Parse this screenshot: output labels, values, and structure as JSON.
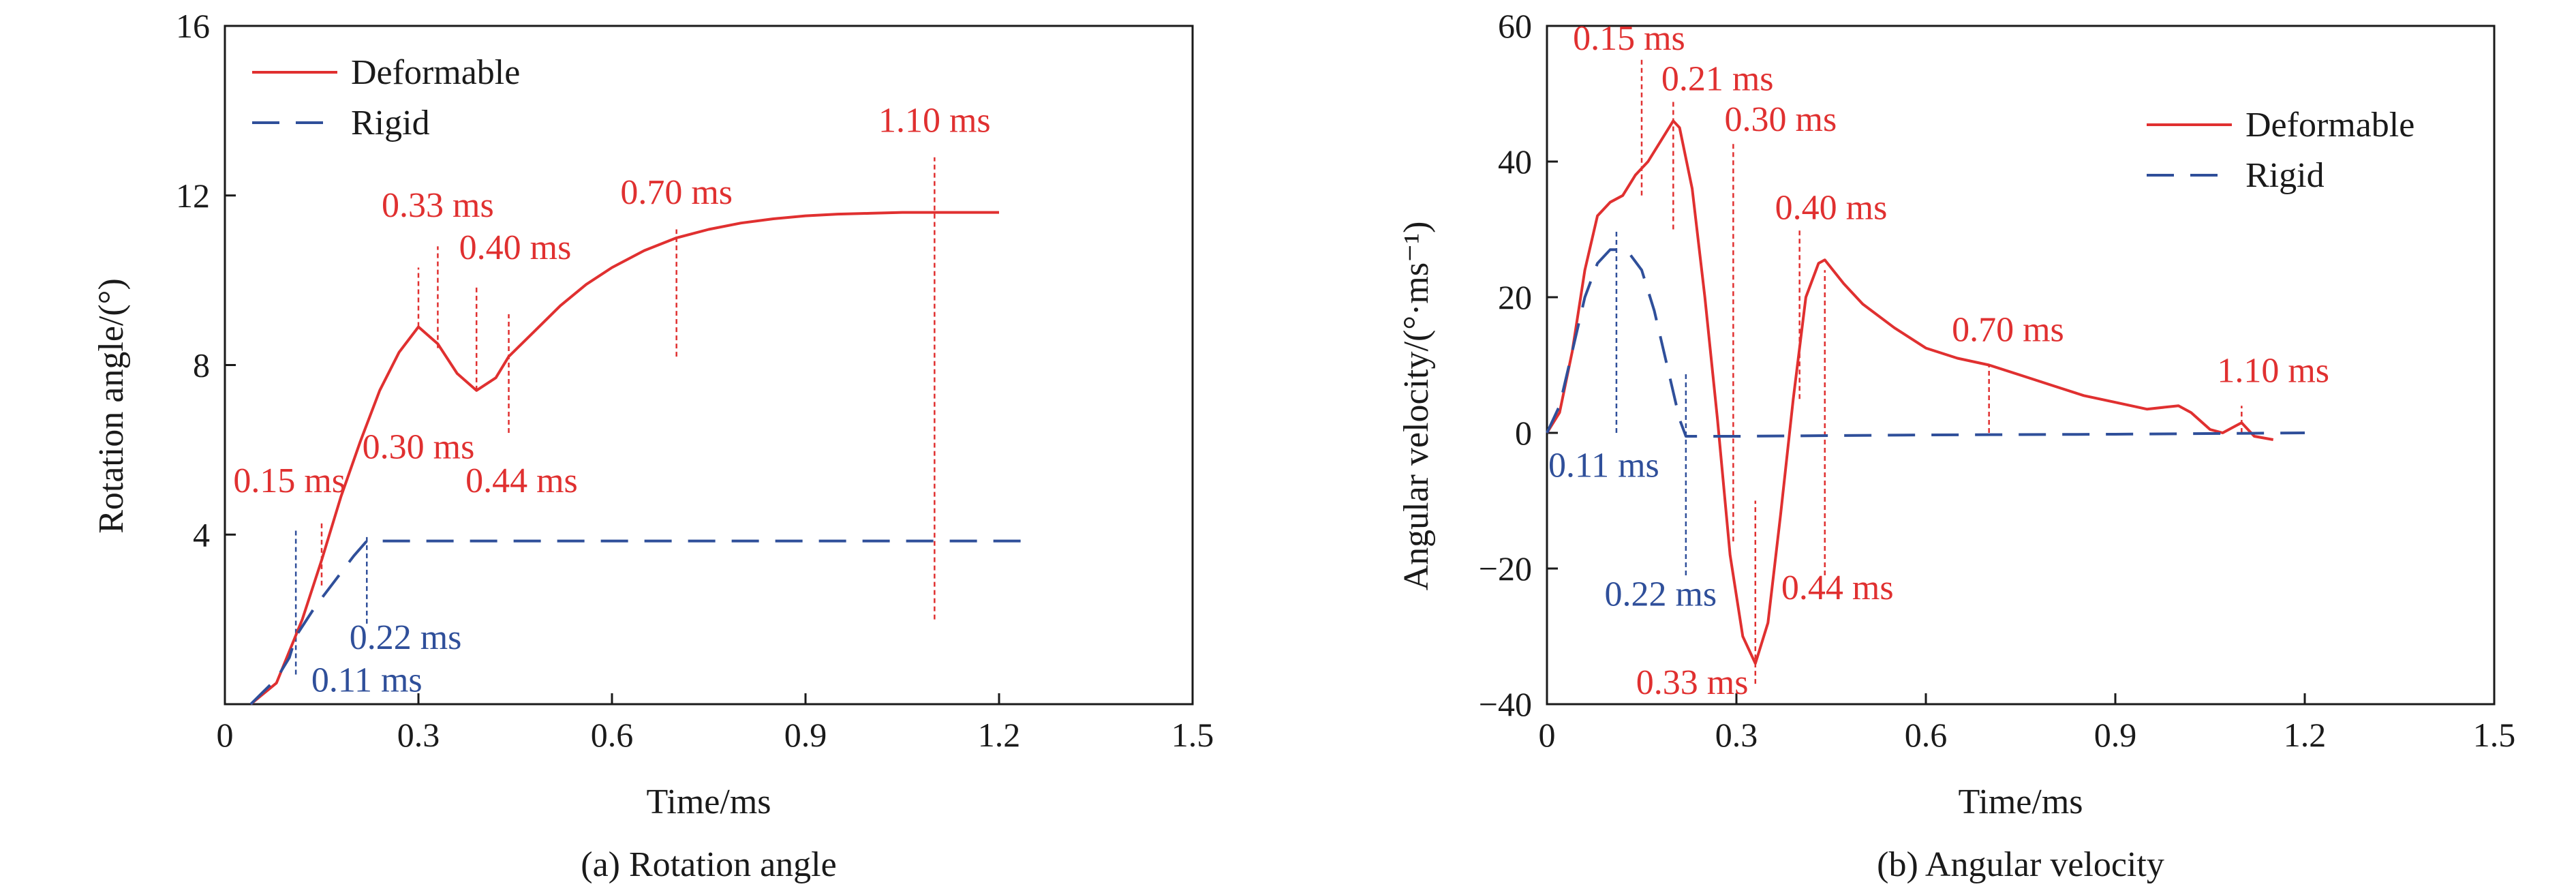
{
  "colors": {
    "deformable": "#e03030",
    "rigid": "#2f4f9a",
    "axis": "#1a1a1a"
  },
  "chart_data": [
    {
      "type": "line",
      "caption": "(a) Rotation angle",
      "xlabel": "Time/ms",
      "ylabel": "Rotation angle/(°)",
      "xlim": [
        0,
        1.5
      ],
      "ylim": [
        0,
        16
      ],
      "xticks": [
        "0",
        "0.3",
        "0.6",
        "0.9",
        "1.2",
        "1.5"
      ],
      "yticks": [
        "4",
        "8",
        "12",
        "16"
      ],
      "legend_position": "top-left",
      "series": [
        {
          "name": "Deformable",
          "style": "solid",
          "color": "#e03030",
          "x": [
            0.04,
            0.08,
            0.12,
            0.15,
            0.18,
            0.21,
            0.24,
            0.27,
            0.3,
            0.33,
            0.36,
            0.39,
            0.42,
            0.44,
            0.48,
            0.52,
            0.56,
            0.6,
            0.65,
            0.7,
            0.75,
            0.8,
            0.85,
            0.9,
            0.95,
            1.0,
            1.05,
            1.1,
            1.15,
            1.2
          ],
          "y": [
            0,
            0.5,
            2.0,
            3.4,
            4.9,
            6.2,
            7.4,
            8.3,
            8.9,
            8.5,
            7.8,
            7.4,
            7.7,
            8.2,
            8.8,
            9.4,
            9.9,
            10.3,
            10.7,
            11.0,
            11.2,
            11.35,
            11.45,
            11.52,
            11.56,
            11.58,
            11.6,
            11.6,
            11.6,
            11.6
          ]
        },
        {
          "name": "Rigid",
          "style": "dashed",
          "color": "#2f4f9a",
          "x": [
            0.04,
            0.06,
            0.08,
            0.1,
            0.11,
            0.14,
            0.17,
            0.2,
            0.22,
            0.3,
            0.6,
            0.9,
            1.2,
            1.25
          ],
          "y": [
            0,
            0.3,
            0.6,
            1.1,
            1.6,
            2.3,
            2.9,
            3.5,
            3.85,
            3.85,
            3.85,
            3.85,
            3.85,
            3.85
          ]
        }
      ],
      "annotations": [
        {
          "text": "0.15 ms",
          "x": 0.15,
          "color": "#e03030",
          "lineY": [
            2.8,
            4.3
          ],
          "labelX": 0.1,
          "labelY": 5.0
        },
        {
          "text": "0.30 ms",
          "x": 0.3,
          "color": "#e03030",
          "lineY": [
            8.9,
            10.3
          ],
          "labelX": 0.3,
          "labelY": 5.8
        },
        {
          "text": "0.33 ms",
          "x": 0.33,
          "color": "#e03030",
          "lineY": [
            8.4,
            10.8
          ],
          "labelX": 0.33,
          "labelY": 11.5
        },
        {
          "text": "0.40 ms",
          "x": 0.39,
          "color": "#e03030",
          "lineY": [
            7.4,
            9.9
          ],
          "labelX": 0.45,
          "labelY": 10.5
        },
        {
          "text": "0.44 ms",
          "x": 0.44,
          "color": "#e03030",
          "lineY": [
            6.4,
            9.2
          ],
          "labelX": 0.46,
          "labelY": 5.0
        },
        {
          "text": "0.70 ms",
          "x": 0.7,
          "color": "#e03030",
          "lineY": [
            8.2,
            11.2
          ],
          "labelX": 0.7,
          "labelY": 11.8
        },
        {
          "text": "1.10 ms",
          "x": 1.1,
          "color": "#e03030",
          "lineY": [
            2.0,
            12.9
          ],
          "labelX": 1.1,
          "labelY": 13.5
        },
        {
          "text": "0.11 ms",
          "x": 0.11,
          "color": "#2f4f9a",
          "lineY": [
            0.7,
            4.1
          ],
          "labelX": 0.22,
          "labelY": 0.3
        },
        {
          "text": "0.22 ms",
          "x": 0.22,
          "color": "#2f4f9a",
          "lineY": [
            1.9,
            4.0
          ],
          "labelX": 0.28,
          "labelY": 1.3
        }
      ]
    },
    {
      "type": "line",
      "caption": "(b) Angular velocity",
      "xlabel": "Time/ms",
      "ylabel": "Angular velocity/(°·ms⁻¹)",
      "xlim": [
        0,
        1.5
      ],
      "ylim": [
        -40,
        60
      ],
      "xticks": [
        "0",
        "0.3",
        "0.6",
        "0.9",
        "1.2",
        "1.5"
      ],
      "yticks": [
        "−40",
        "−20",
        "0",
        "20",
        "40",
        "60"
      ],
      "legend_position": "top-right",
      "series": [
        {
          "name": "Deformable",
          "style": "solid",
          "color": "#e03030",
          "x": [
            0.0,
            0.02,
            0.04,
            0.06,
            0.08,
            0.1,
            0.12,
            0.14,
            0.16,
            0.18,
            0.2,
            0.21,
            0.23,
            0.25,
            0.27,
            0.29,
            0.31,
            0.33,
            0.35,
            0.37,
            0.39,
            0.41,
            0.43,
            0.44,
            0.47,
            0.5,
            0.55,
            0.6,
            0.65,
            0.7,
            0.75,
            0.8,
            0.85,
            0.9,
            0.95,
            1.0,
            1.02,
            1.05,
            1.07,
            1.09,
            1.1,
            1.12,
            1.15
          ],
          "y": [
            0,
            3,
            12,
            24,
            32,
            34,
            35,
            38,
            40,
            43,
            46,
            45,
            36,
            20,
            2,
            -18,
            -30,
            -34,
            -28,
            -12,
            5,
            20,
            25,
            25.5,
            22,
            19,
            15.5,
            12.5,
            11,
            10,
            8.5,
            7,
            5.5,
            4.5,
            3.5,
            4,
            3,
            0.5,
            0,
            1,
            1.5,
            -0.5,
            -1
          ]
        },
        {
          "name": "Rigid",
          "style": "dashed",
          "color": "#2f4f9a",
          "x": [
            0.0,
            0.02,
            0.04,
            0.06,
            0.08,
            0.1,
            0.11,
            0.13,
            0.15,
            0.17,
            0.19,
            0.21,
            0.22,
            0.3,
            0.6,
            0.9,
            1.2
          ],
          "y": [
            0,
            4,
            12,
            20,
            25,
            27,
            27,
            26.5,
            24,
            18,
            10,
            2,
            -0.5,
            -0.5,
            -0.3,
            -0.2,
            0
          ]
        }
      ],
      "annotations": [
        {
          "text": "0.15 ms",
          "x": 0.15,
          "color": "#e03030",
          "lineY": [
            35,
            55
          ],
          "labelX": 0.13,
          "labelY": 56.5
        },
        {
          "text": "0.21 ms",
          "x": 0.2,
          "color": "#e03030",
          "lineY": [
            30,
            49
          ],
          "labelX": 0.27,
          "labelY": 50.5
        },
        {
          "text": "0.30 ms",
          "x": 0.295,
          "color": "#e03030",
          "lineY": [
            -16,
            43
          ],
          "labelX": 0.37,
          "labelY": 44.5
        },
        {
          "text": "0.40 ms",
          "x": 0.4,
          "color": "#e03030",
          "lineY": [
            5,
            30
          ],
          "labelX": 0.45,
          "labelY": 31.5
        },
        {
          "text": "0.44 ms",
          "x": 0.44,
          "color": "#e03030",
          "lineY": [
            -21,
            24
          ],
          "labelX": 0.46,
          "labelY": -24.5
        },
        {
          "text": "0.33 ms",
          "x": 0.33,
          "color": "#e03030",
          "lineY": [
            -37,
            -10
          ],
          "labelX": 0.23,
          "labelY": -38.5
        },
        {
          "text": "0.70 ms",
          "x": 0.7,
          "color": "#e03030",
          "lineY": [
            0,
            10
          ],
          "labelX": 0.73,
          "labelY": 13.5
        },
        {
          "text": "1.10 ms",
          "x": 1.1,
          "color": "#e03030",
          "lineY": [
            0,
            4
          ],
          "labelX": 1.15,
          "labelY": 7.5
        },
        {
          "text": "0.11 ms",
          "x": 0.11,
          "color": "#2f4f9a",
          "lineY": [
            0,
            30
          ],
          "labelX": 0.09,
          "labelY": -6.5
        },
        {
          "text": "0.22 ms",
          "x": 0.22,
          "color": "#2f4f9a",
          "lineY": [
            -21,
            9
          ],
          "labelX": 0.18,
          "labelY": -25.5
        }
      ]
    }
  ]
}
